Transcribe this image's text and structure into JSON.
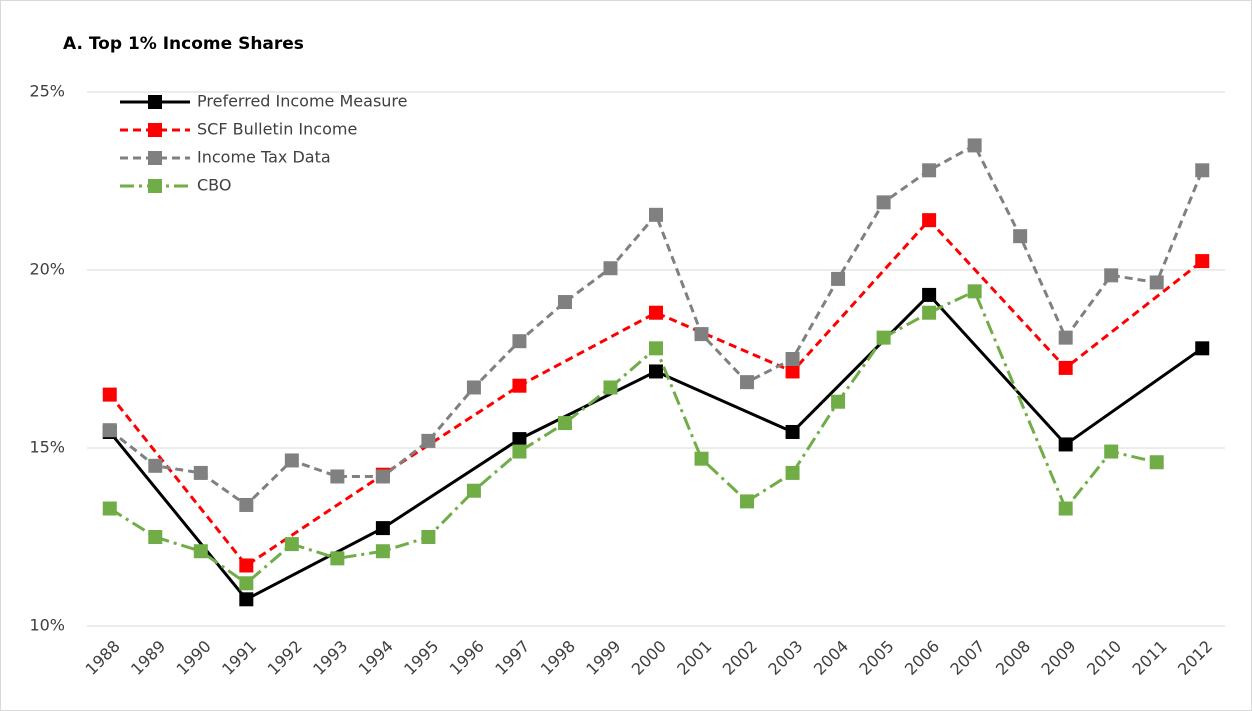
{
  "chart_data": {
    "type": "line",
    "title": "A. Top 1% Income Shares",
    "xlim": [
      1987.5,
      2012.5
    ],
    "xticks": [
      1988,
      1989,
      1990,
      1991,
      1992,
      1993,
      1994,
      1995,
      1996,
      1997,
      1998,
      1999,
      2000,
      2001,
      2002,
      2003,
      2004,
      2005,
      2006,
      2007,
      2008,
      2009,
      2010,
      2011,
      2012
    ],
    "ylim": [
      10,
      25
    ],
    "yticks": [
      {
        "value": 10,
        "label": "10%"
      },
      {
        "value": 15,
        "label": "15%"
      },
      {
        "value": 20,
        "label": "20%"
      },
      {
        "value": 25,
        "label": "25%"
      }
    ],
    "grid": true,
    "legend": "top-left",
    "series": [
      {
        "name": "Preferred Income Measure",
        "color": "#000000",
        "dash": "solid",
        "x": [
          1988,
          1991,
          1994,
          1997,
          2000,
          2003,
          2006,
          2009,
          2012
        ],
        "values": [
          15.45,
          10.75,
          12.75,
          15.25,
          17.15,
          15.45,
          19.3,
          15.1,
          17.8
        ]
      },
      {
        "name": "SCF Bulletin Income",
        "color": "#ff0000",
        "dash": "dashed",
        "x": [
          1988,
          1991,
          1994,
          1997,
          2000,
          2003,
          2006,
          2009,
          2012
        ],
        "values": [
          16.5,
          11.7,
          14.25,
          16.75,
          18.8,
          17.15,
          21.4,
          17.25,
          20.25
        ]
      },
      {
        "name": "Income Tax Data",
        "color": "#808080",
        "dash": "dashed",
        "x": [
          1988,
          1989,
          1990,
          1991,
          1992,
          1993,
          1994,
          1995,
          1996,
          1997,
          1998,
          1999,
          2000,
          2001,
          2002,
          2003,
          2004,
          2005,
          2006,
          2007,
          2008,
          2009,
          2010,
          2011,
          2012
        ],
        "values": [
          15.5,
          14.5,
          14.3,
          13.4,
          14.65,
          14.2,
          14.2,
          15.2,
          16.7,
          18.0,
          19.1,
          20.05,
          21.55,
          18.2,
          16.85,
          17.5,
          19.75,
          21.9,
          22.8,
          23.5,
          20.95,
          18.1,
          19.85,
          19.65,
          22.8
        ]
      },
      {
        "name": "CBO",
        "color": "#70ad47",
        "dash": "dashdot",
        "x": [
          1988,
          1989,
          1990,
          1991,
          1992,
          1993,
          1994,
          1995,
          1996,
          1997,
          1998,
          1999,
          2000,
          2001,
          2002,
          2003,
          2004,
          2005,
          2006,
          2007,
          2009,
          2010,
          2011
        ],
        "values": [
          13.3,
          12.5,
          12.1,
          11.2,
          12.3,
          11.9,
          12.1,
          12.5,
          13.8,
          14.9,
          15.7,
          16.7,
          17.8,
          14.7,
          13.5,
          14.3,
          16.3,
          18.1,
          18.8,
          19.4,
          13.3,
          14.9,
          14.6
        ]
      }
    ]
  }
}
